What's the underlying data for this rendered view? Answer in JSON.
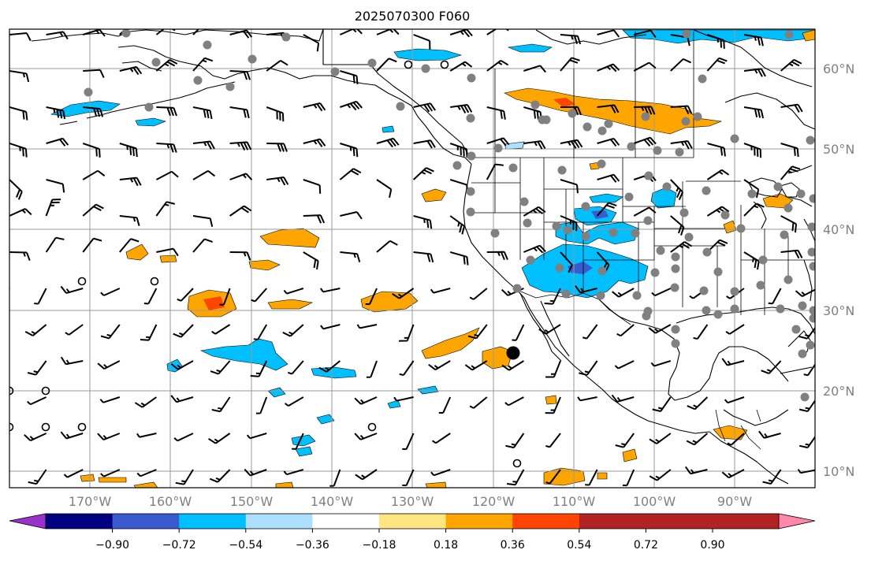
{
  "title": "2025070300 F060",
  "lat_labels": [
    "60°N",
    "50°N",
    "40°N",
    "30°N",
    "20°N",
    "10°N"
  ],
  "lon_labels": [
    "170°W",
    "160°W",
    "150°W",
    "140°W",
    "130°W",
    "120°W",
    "110°W",
    "100°W",
    "90°W"
  ],
  "colorbar": {
    "tick_labels": [
      "−0.90",
      "−0.72",
      "−0.54",
      "−0.36",
      "−0.18",
      "0.18",
      "0.36",
      "0.54",
      "0.72",
      "0.90"
    ],
    "colors": [
      "#9932CC",
      "#000080",
      "#3A5BD0",
      "#00BFFF",
      "#ADDFFF",
      "#FFFFFF",
      "#FFE680",
      "#FFA500",
      "#FF4500",
      "#B22222",
      "#FF88AA"
    ]
  },
  "map": {
    "projection": "PlateCarree",
    "lon_range": [
      -180,
      -80
    ],
    "lat_range": [
      8,
      65
    ],
    "land_fill": "none",
    "field": "positive shading orange/red, negative shading blue, wind barbs black, station markers grey"
  }
}
